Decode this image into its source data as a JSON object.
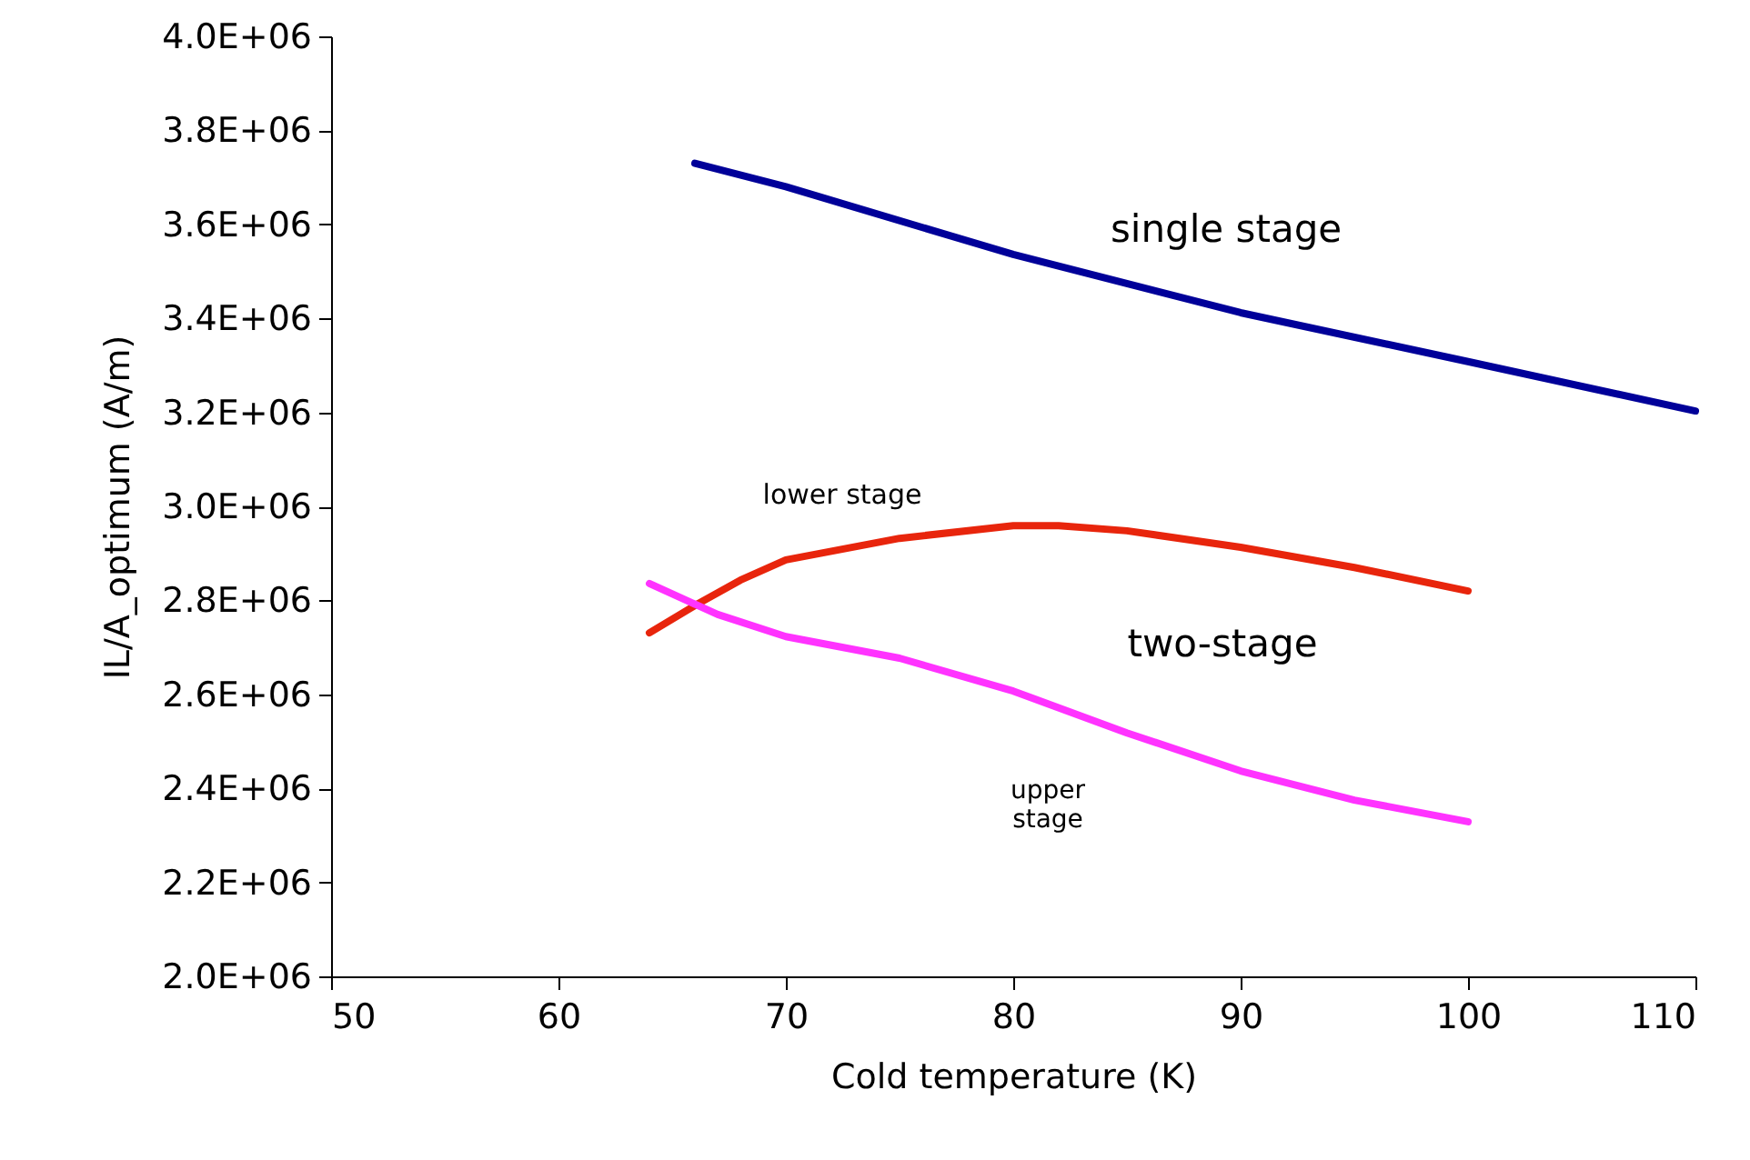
{
  "chart_data": {
    "type": "line",
    "xlabel": "Cold temperature (K)",
    "ylabel": "IL/A_optimum (A/m)",
    "xlim": [
      50,
      110
    ],
    "xticks": [
      50,
      60,
      70,
      80,
      90,
      100,
      110
    ],
    "ylim": [
      2000000,
      4000000
    ],
    "yticks": [
      {
        "value": 2000000,
        "label": "2.0E+06"
      },
      {
        "value": 2200000,
        "label": "2.2E+06"
      },
      {
        "value": 2400000,
        "label": "2.4E+06"
      },
      {
        "value": 2600000,
        "label": "2.6E+06"
      },
      {
        "value": 2800000,
        "label": "2.8E+06"
      },
      {
        "value": 3000000,
        "label": "3.0E+06"
      },
      {
        "value": 3200000,
        "label": "3.2E+06"
      },
      {
        "value": 3400000,
        "label": "3.4E+06"
      },
      {
        "value": 3600000,
        "label": "3.6E+06"
      },
      {
        "value": 3800000,
        "label": "3.8E+06"
      },
      {
        "value": 4000000,
        "label": "4.0E+06"
      }
    ],
    "grid": false,
    "legend": false,
    "marker": "none",
    "line_style": "solid",
    "series": [
      {
        "color": "#000099",
        "x": [
          66,
          70,
          80,
          90,
          100,
          110
        ],
        "values": [
          3730000,
          3680000,
          3536000,
          3412000,
          3308000,
          3203000
        ]
      },
      {
        "color": "#e8250c",
        "x": [
          64,
          66,
          68,
          70,
          75,
          80,
          82,
          85,
          90,
          95,
          100
        ],
        "values": [
          2731000,
          2789000,
          2843000,
          2886000,
          2932000,
          2959000,
          2959000,
          2948000,
          2913000,
          2870000,
          2820000
        ]
      },
      {
        "color": "#ff33ff",
        "x": [
          64,
          67,
          70,
          75,
          80,
          85,
          90,
          95,
          100
        ],
        "values": [
          2836000,
          2770000,
          2723000,
          2677000,
          2607000,
          2518000,
          2437000,
          2375000,
          2329000
        ]
      }
    ],
    "annotations": [
      "single stage",
      "lower stage",
      "two-stage",
      "upper\nstage"
    ]
  }
}
